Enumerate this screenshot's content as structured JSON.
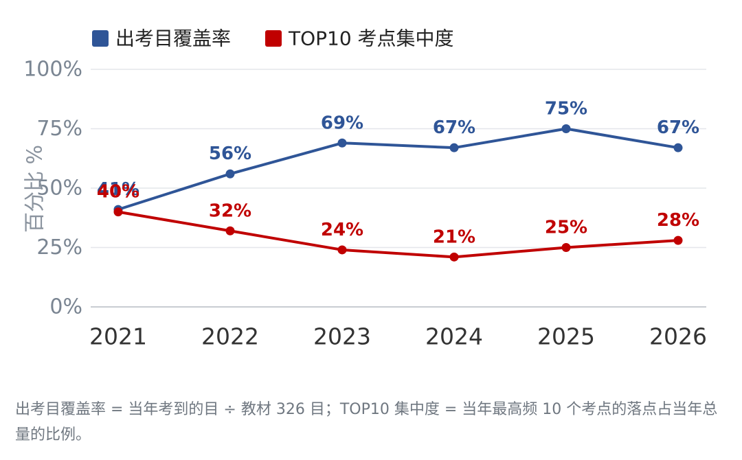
{
  "chart_data": {
    "type": "line",
    "x": [
      "2021",
      "2022",
      "2023",
      "2024",
      "2025",
      "2026"
    ],
    "series": [
      {
        "name": "出考目覆盖率",
        "color": "#2f5597",
        "values": [
          41,
          56,
          69,
          67,
          75,
          67
        ],
        "labels": [
          "41%",
          "56%",
          "69%",
          "67%",
          "75%",
          "67%"
        ]
      },
      {
        "name": "TOP10 考点集中度",
        "color": "#c00000",
        "values": [
          40,
          32,
          24,
          21,
          25,
          28
        ],
        "labels": [
          "40%",
          "32%",
          "24%",
          "21%",
          "25%",
          "28%"
        ]
      }
    ],
    "ylabel": "百分比 %",
    "ylim": [
      0,
      100
    ],
    "yticks": [
      0,
      25,
      50,
      75,
      100
    ],
    "ytick_labels": [
      "0%",
      "25%",
      "50%",
      "75%",
      "100%"
    ],
    "grid": true,
    "legend": "top-left"
  },
  "footnote": "出考目覆盖率 = 当年考到的目 ÷ 教材 326 目；TOP10 集中度 = 当年最高频 10 个考点的落点占当年总量的比例。"
}
